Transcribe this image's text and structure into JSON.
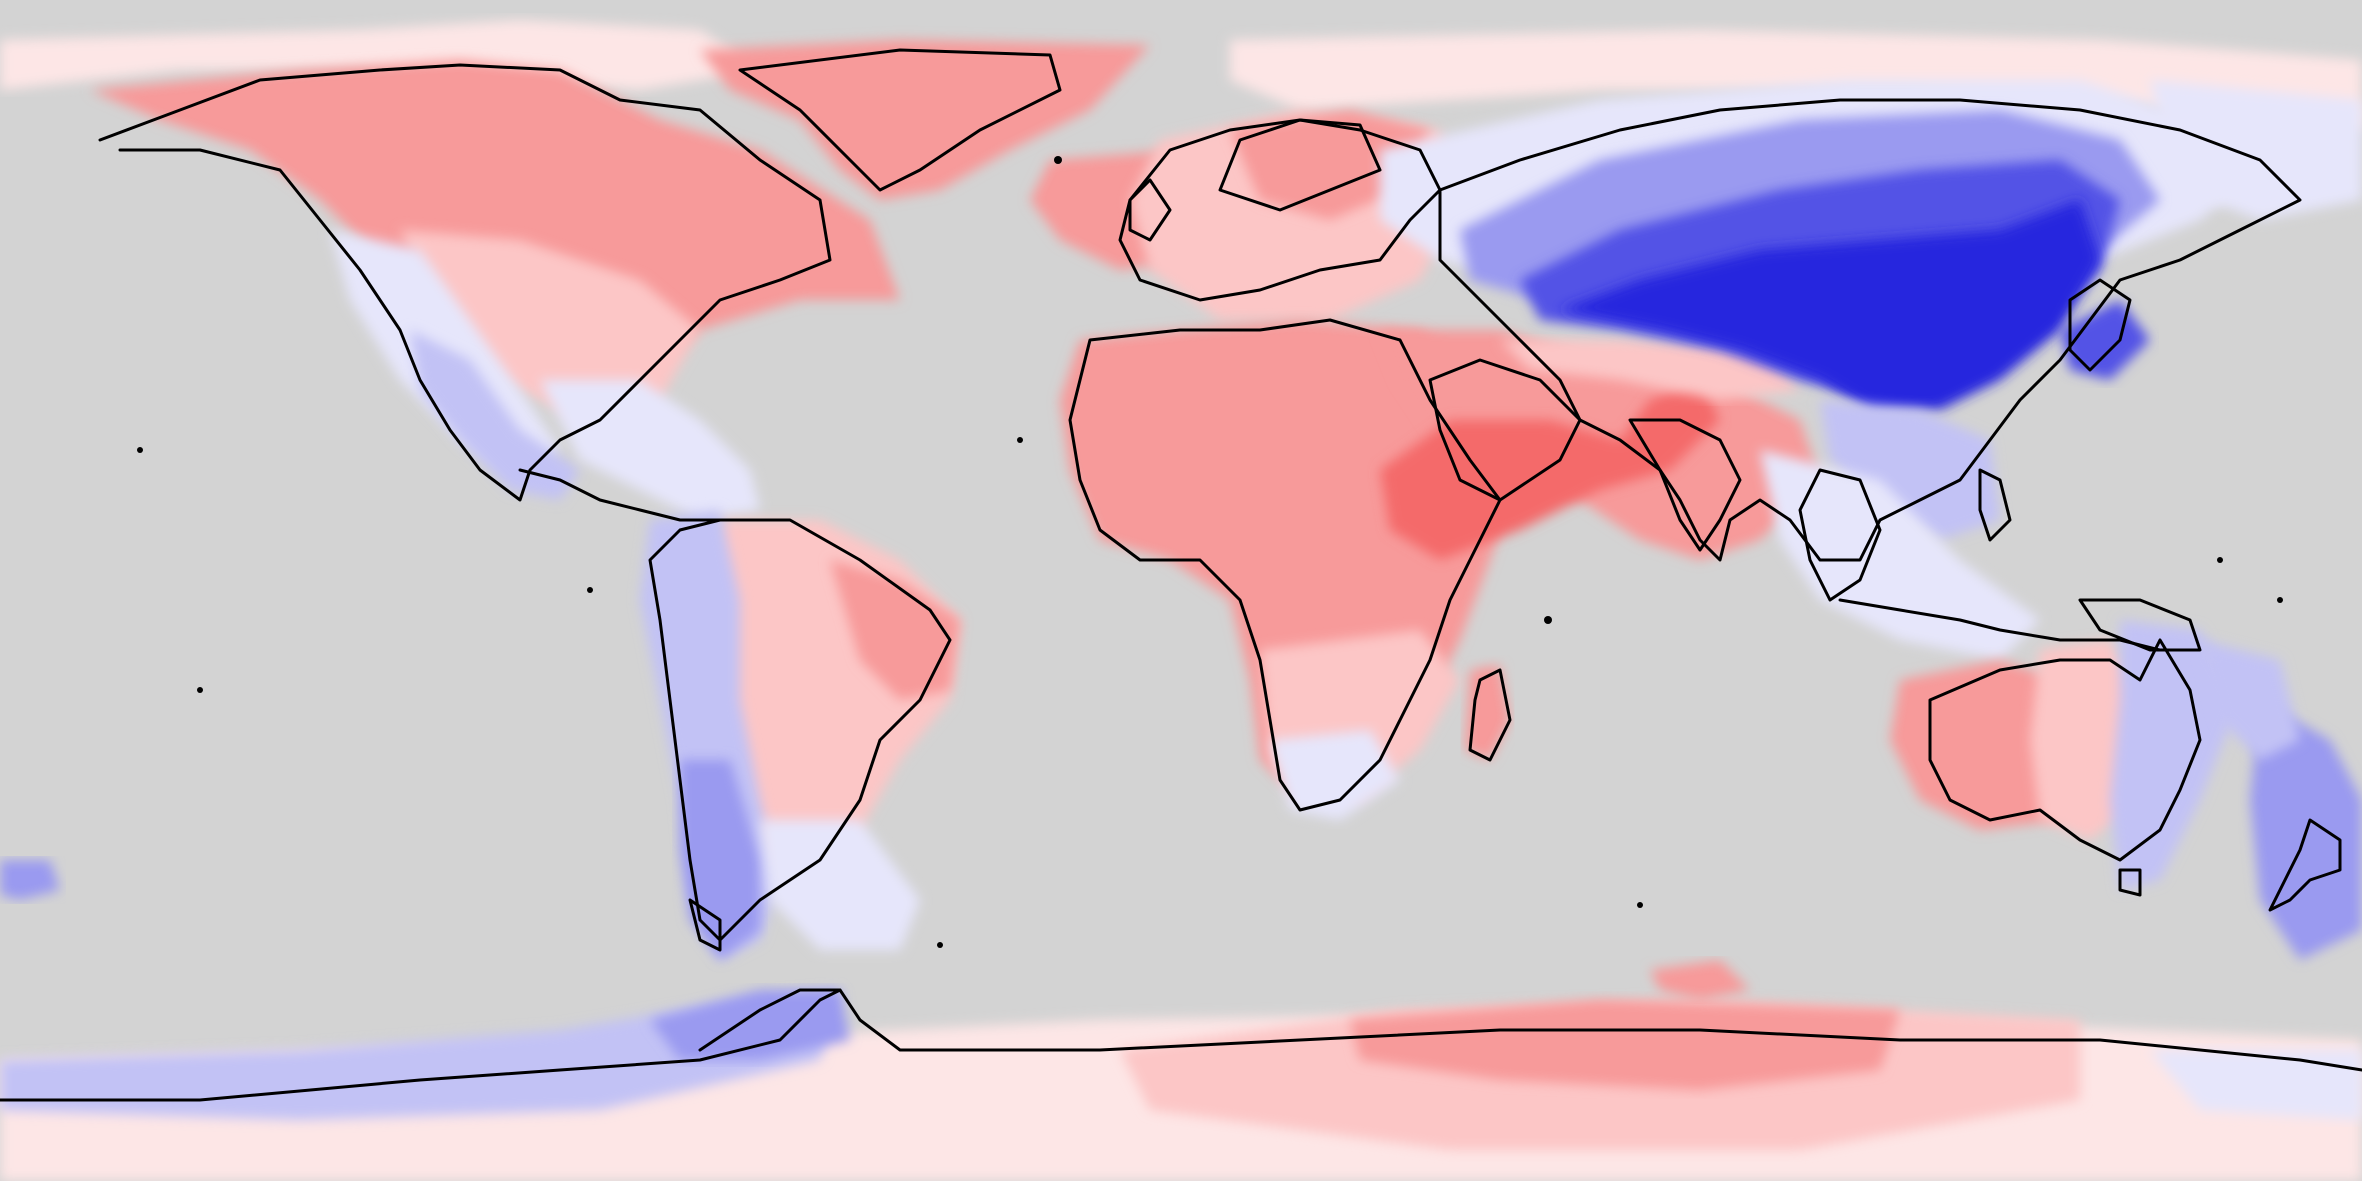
{
  "map": {
    "projection": "equirectangular",
    "extent": {
      "lon": [
        -180,
        180
      ],
      "lat": [
        -90,
        90
      ]
    },
    "ocean_color": "#d3d3d3",
    "coastline_color": "#000000",
    "palette": {
      "strong_warm": "#f46a6a",
      "warm": "#f79a9a",
      "light_warm": "#fcc6c6",
      "faint_warm": "#fde6e6",
      "faint_cool": "#e6e6fb",
      "light_cool": "#c2c2f5",
      "cool": "#9a9af0",
      "strong_cool": "#5252e6",
      "deepest_cool": "#2828de"
    },
    "regions": [
      {
        "name": "north-america-warm",
        "level": "warm"
      },
      {
        "name": "greenland-warm",
        "level": "warm"
      },
      {
        "name": "africa-warm",
        "level": "warm"
      },
      {
        "name": "arabia-india-strong-warm",
        "level": "strong_warm"
      },
      {
        "name": "east-asia-strong-cool",
        "level": "deepest_cool"
      },
      {
        "name": "siberia-cool",
        "level": "cool"
      },
      {
        "name": "andes-patagonia-cool",
        "level": "cool"
      },
      {
        "name": "australia-west-warm",
        "level": "warm"
      },
      {
        "name": "australia-east-cool",
        "level": "light_cool"
      },
      {
        "name": "antarctica-east-warm",
        "level": "warm"
      },
      {
        "name": "antarctica-west-cool",
        "level": "light_cool"
      }
    ]
  }
}
